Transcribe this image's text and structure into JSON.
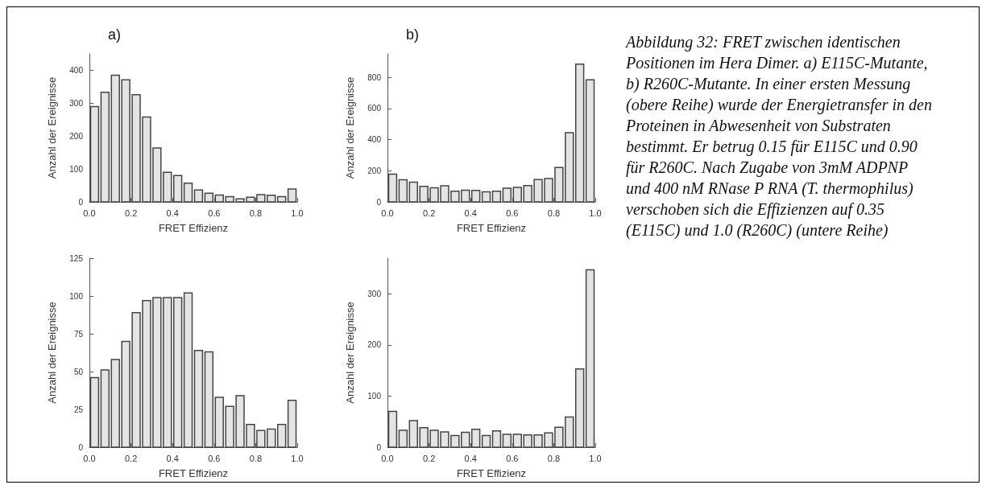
{
  "chart_data": [
    {
      "type": "histogram",
      "title": "a)",
      "xlabel": "FRET Effizienz",
      "ylabel": "Anzahl der Ereignisse",
      "color": "#e4e4e4",
      "bins": [
        0,
        0.05,
        0.1,
        0.15,
        0.2,
        0.25,
        0.3,
        0.35,
        0.4,
        0.45,
        0.5,
        0.55,
        0.6,
        0.65,
        0.7,
        0.75,
        0.8,
        0.85,
        0.9,
        0.95,
        1.0
      ],
      "values": [
        290,
        333,
        385,
        371,
        326,
        258,
        164,
        90,
        80,
        57,
        36,
        26,
        21,
        16,
        9,
        14,
        22,
        20,
        16,
        39
      ],
      "xlim": [
        0,
        1.0
      ],
      "xticks": [
        {
          "value": 0,
          "label": "0.0"
        },
        {
          "value": 0.2,
          "label": "0.2"
        },
        {
          "value": 0.4,
          "label": "0.4"
        },
        {
          "value": 0.6,
          "label": "0.6"
        },
        {
          "value": 0.8,
          "label": "0.8"
        },
        {
          "value": 1.0,
          "label": "1.0"
        }
      ],
      "ylim": [
        0,
        450
      ],
      "yticks": [
        0,
        100,
        200,
        300,
        400
      ],
      "grid": false
    },
    {
      "type": "histogram",
      "title": "b)",
      "xlabel": "FRET Effizienz",
      "ylabel": "Anzahl der Ereignisse",
      "color": "#e4e4e4",
      "bins": [
        0,
        0.05,
        0.1,
        0.15,
        0.2,
        0.25,
        0.3,
        0.35,
        0.4,
        0.45,
        0.5,
        0.55,
        0.6,
        0.65,
        0.7,
        0.75,
        0.8,
        0.85,
        0.9,
        0.95,
        1.0
      ],
      "values": [
        178,
        142,
        127,
        100,
        90,
        103,
        68,
        75,
        73,
        65,
        68,
        88,
        93,
        105,
        143,
        150,
        221,
        444,
        884,
        784
      ],
      "xlim": [
        0,
        1.0
      ],
      "xticks": [
        {
          "value": 0,
          "label": "0.0"
        },
        {
          "value": 0.2,
          "label": "0.2"
        },
        {
          "value": 0.4,
          "label": "0.4"
        },
        {
          "value": 0.6,
          "label": "0.6"
        },
        {
          "value": 0.8,
          "label": "0.8"
        },
        {
          "value": 1.0,
          "label": "1.0"
        }
      ],
      "ylim": [
        0,
        950
      ],
      "yticks": [
        0,
        200,
        400,
        600,
        800
      ],
      "grid": false
    },
    {
      "type": "histogram",
      "xlabel": "FRET Effizienz",
      "ylabel": "Anzahl der Ereignisse",
      "color": "#e4e4e4",
      "bins": [
        0,
        0.05,
        0.1,
        0.15,
        0.2,
        0.25,
        0.3,
        0.35,
        0.4,
        0.45,
        0.5,
        0.55,
        0.6,
        0.65,
        0.7,
        0.75,
        0.8,
        0.85,
        0.9,
        0.95,
        1.0
      ],
      "values": [
        46,
        51,
        58,
        70,
        89,
        97,
        99,
        99,
        99,
        102,
        64,
        63,
        33,
        27,
        34,
        15,
        11,
        12,
        15,
        31
      ],
      "xlim": [
        0,
        1.0
      ],
      "xticks": [
        {
          "value": 0,
          "label": "0.0"
        },
        {
          "value": 0.2,
          "label": "0.2"
        },
        {
          "value": 0.4,
          "label": "0.4"
        },
        {
          "value": 0.6,
          "label": "0.6"
        },
        {
          "value": 0.8,
          "label": "0.8"
        },
        {
          "value": 1.0,
          "label": "1.0"
        }
      ],
      "ylim": [
        0,
        125
      ],
      "yticks": [
        0,
        25,
        50,
        75,
        100,
        125
      ],
      "grid": false
    },
    {
      "type": "histogram",
      "xlabel": "FRET Effizienz",
      "ylabel": "Anzahl der Ereignisse",
      "color": "#e4e4e4",
      "bins": [
        0,
        0.05,
        0.1,
        0.15,
        0.2,
        0.25,
        0.3,
        0.35,
        0.4,
        0.45,
        0.5,
        0.55,
        0.6,
        0.65,
        0.7,
        0.75,
        0.8,
        0.85,
        0.9,
        0.95,
        1.0
      ],
      "values": [
        70,
        33,
        52,
        38,
        33,
        30,
        23,
        29,
        35,
        23,
        32,
        25,
        25,
        24,
        24,
        28,
        39,
        59,
        153,
        347
      ],
      "xlim": [
        0,
        1.0
      ],
      "xticks": [
        {
          "value": 0,
          "label": "0.0"
        },
        {
          "value": 0.2,
          "label": "0.2"
        },
        {
          "value": 0.4,
          "label": "0.4"
        },
        {
          "value": 0.6,
          "label": "0.6"
        },
        {
          "value": 0.8,
          "label": "0.8"
        },
        {
          "value": 1.0,
          "label": "1.0"
        }
      ],
      "ylim": [
        0,
        370
      ],
      "yticks": [
        0,
        100,
        200,
        300
      ],
      "grid": false
    },
    {
      "type": "other",
      "annotations": [
        "Abbildung 32: FRET zwischen identischen Positionen im Hera Dimer. a) E115C-Mutante, b) R260C-Mutante. In einer ersten Messung (obere Reihe) wurde der Energietransfer in den Proteinen in Abwesenheit von Substraten bestimmt. Er betrug 0.15 für E115C und 0.90 für R260C. Nach Zugabe von 3mM ADPNP und 400 nM RNase P RNA (T. thermophilus) verschoben sich die Effizienzen auf 0.35 (E115C) und 1.0 (R260C) (untere Reihe)"
      ]
    }
  ]
}
